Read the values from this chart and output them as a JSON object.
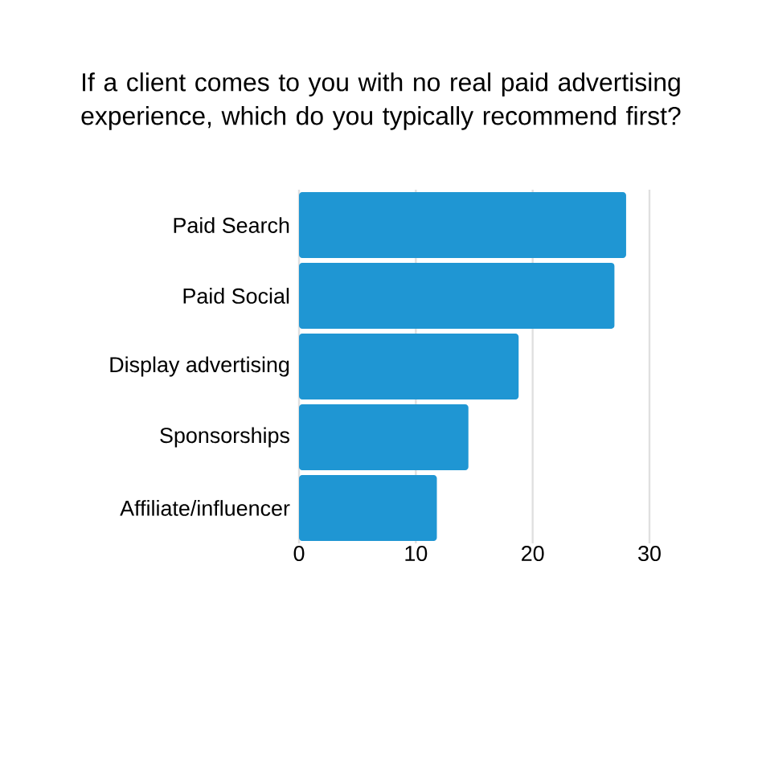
{
  "chart_data": {
    "type": "bar",
    "orientation": "horizontal",
    "title": "If a client comes to you with no real paid advertising experience, which do you typically recommend first?",
    "categories": [
      "Paid Search",
      "Paid Social",
      "Display advertising",
      "Sponsorships",
      "Affiliate/influencer"
    ],
    "values": [
      28,
      27,
      18.8,
      14.5,
      11.8
    ],
    "color": "#1f96d3",
    "xlim": [
      0,
      30
    ],
    "xticks": [
      0,
      10,
      20,
      30
    ],
    "grid": "x"
  }
}
